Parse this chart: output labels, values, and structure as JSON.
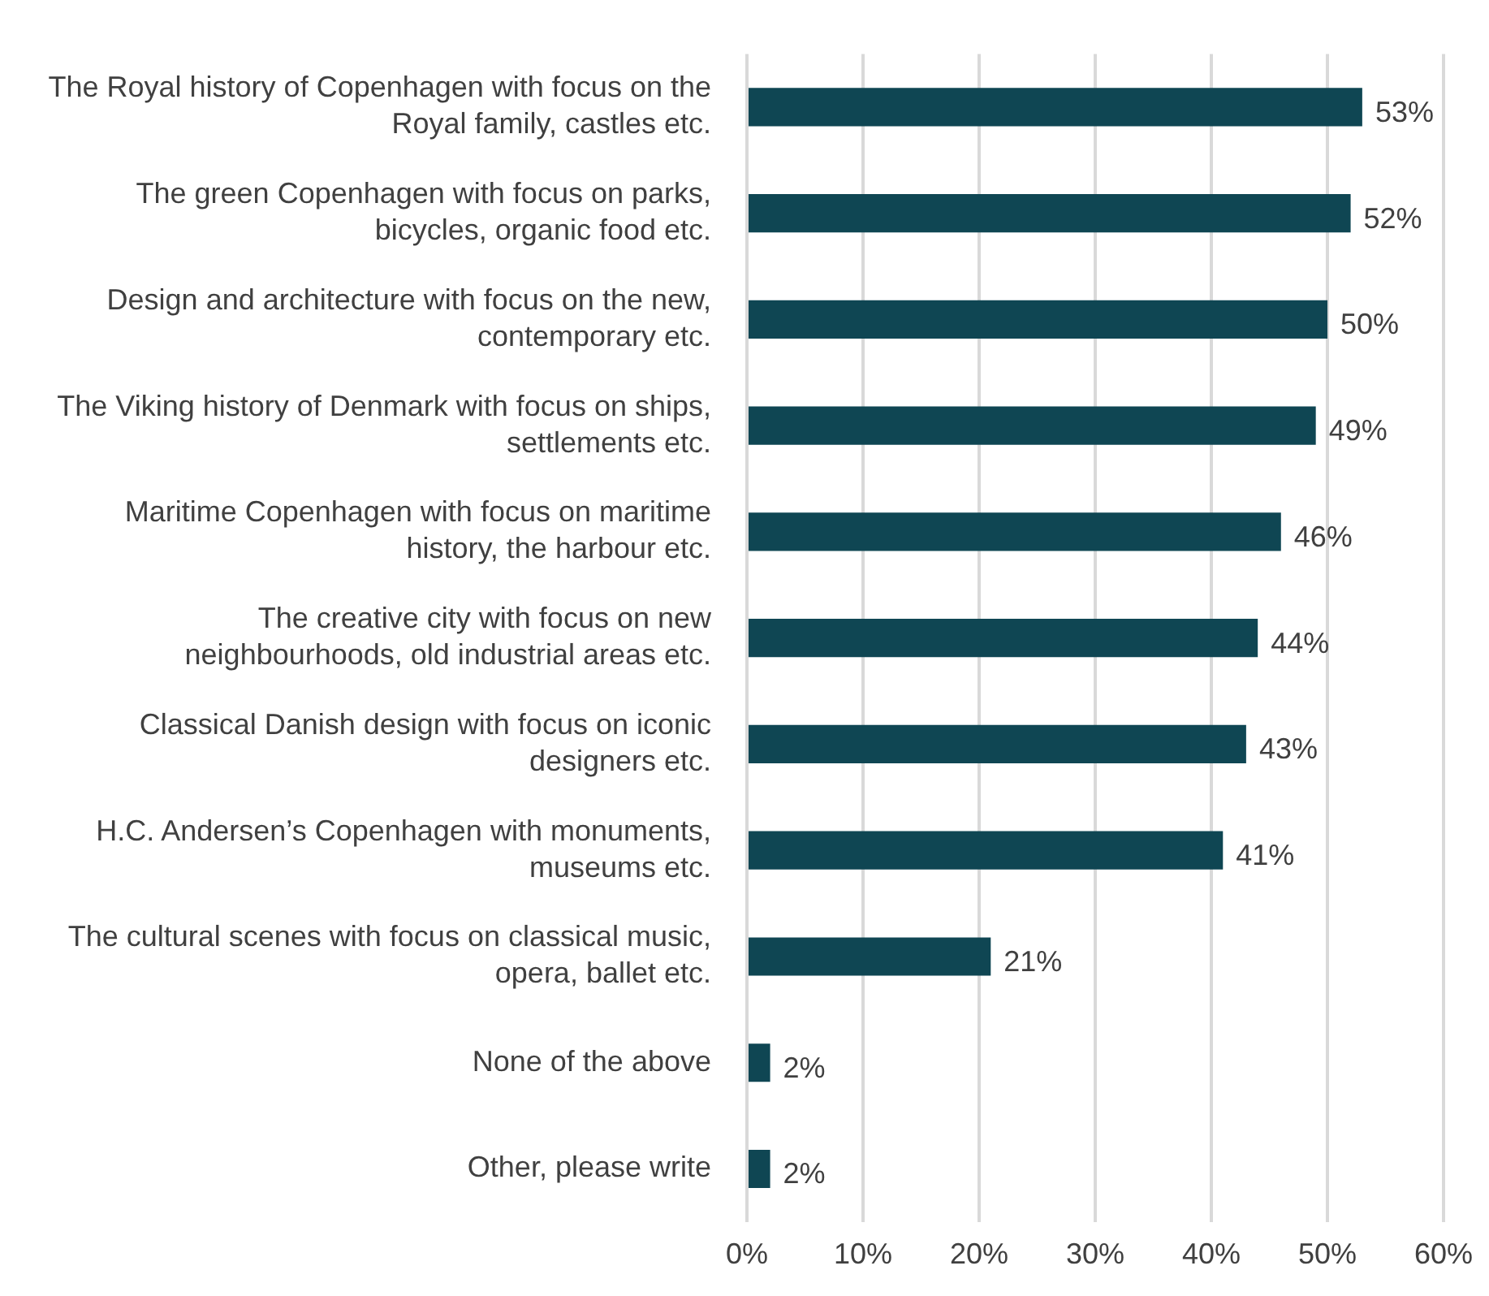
{
  "chart_data": {
    "type": "bar",
    "orientation": "horizontal",
    "categories": [
      "The Royal history of Copenhagen with focus on the Royal family, castles etc.",
      "The green Copenhagen with focus on parks, bicycles, organic food etc.",
      "Design and architecture with focus on the new, contemporary etc.",
      "The Viking history of Denmark with focus on ships, settlements etc.",
      "Maritime Copenhagen with focus on maritime history, the harbour etc.",
      "The creative city with focus on new neighbourhoods, old industrial areas etc.",
      "Classical Danish design with focus on iconic designers etc.",
      "H.C. Andersen’s Copenhagen with monuments, museums etc.",
      "The cultural scenes with focus on classical music, opera, ballet etc.",
      "None of the above",
      "Other, please write"
    ],
    "values": [
      53,
      52,
      50,
      49,
      46,
      44,
      43,
      41,
      21,
      2,
      2
    ],
    "value_labels": [
      "53%",
      "52%",
      "50%",
      "49%",
      "46%",
      "44%",
      "43%",
      "41%",
      "21%",
      "2%",
      "2%"
    ],
    "color": "#0f4653",
    "xlim": [
      0,
      60
    ],
    "xticks": [
      {
        "value": 0,
        "label": "0%"
      },
      {
        "value": 10,
        "label": "10%"
      },
      {
        "value": 20,
        "label": "20%"
      },
      {
        "value": 30,
        "label": "30%"
      },
      {
        "value": 40,
        "label": "40%"
      },
      {
        "value": 50,
        "label": "50%"
      },
      {
        "value": 60,
        "label": "60%"
      }
    ],
    "grid": "x",
    "legend": false
  }
}
